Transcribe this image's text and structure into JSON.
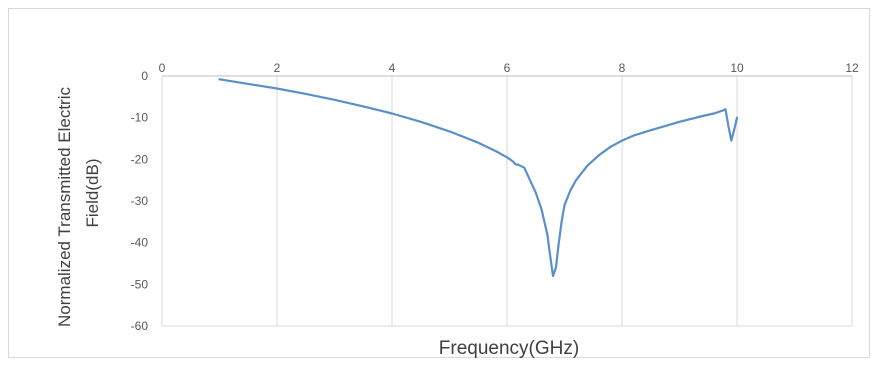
{
  "chart_data": {
    "type": "line",
    "title": "",
    "xlabel": "Frequency(GHz)",
    "ylabel_lines": [
      "Normalized Transmitted Electric",
      "Field(dB)"
    ],
    "xlim": [
      0,
      12
    ],
    "ylim": [
      -60,
      0
    ],
    "x_ticks": [
      0,
      2,
      4,
      6,
      8,
      10,
      12
    ],
    "y_ticks": [
      0,
      -10,
      -20,
      -30,
      -40,
      -50,
      -60
    ],
    "x_tick_labels": [
      "0",
      "2",
      "4",
      "6",
      "8",
      "10",
      "12"
    ],
    "y_tick_labels": [
      "0",
      "-10",
      "-20",
      "-30",
      "-40",
      "-50",
      "-60"
    ],
    "x_axis_position": "top",
    "grid": "vertical",
    "legend": "none",
    "series": [
      {
        "color": "#5b8fc9",
        "x": [
          1.0,
          1.5,
          2.0,
          2.5,
          3.0,
          3.5,
          4.0,
          4.5,
          5.0,
          5.5,
          5.8,
          6.0,
          6.1,
          6.15,
          6.2,
          6.3,
          6.4,
          6.5,
          6.6,
          6.7,
          6.75,
          6.8,
          6.85,
          6.9,
          6.95,
          7.0,
          7.1,
          7.2,
          7.4,
          7.6,
          7.8,
          8.0,
          8.2,
          8.5,
          8.8,
          9.0,
          9.2,
          9.4,
          9.6,
          9.75,
          9.8,
          9.85,
          9.9,
          9.95,
          10.0
        ],
        "y": [
          -0.8,
          -1.9,
          -3.0,
          -4.3,
          -5.7,
          -7.3,
          -9.0,
          -11.0,
          -13.3,
          -16.0,
          -18.0,
          -19.5,
          -20.5,
          -21.2,
          -21.3,
          -22.0,
          -25.0,
          -28.0,
          -32.0,
          -38.0,
          -43.0,
          -48.0,
          -46.0,
          -40.0,
          -35.0,
          -31.0,
          -27.5,
          -25.0,
          -21.5,
          -19.0,
          -17.0,
          -15.5,
          -14.3,
          -13.0,
          -11.8,
          -11.0,
          -10.3,
          -9.6,
          -9.0,
          -8.3,
          -8.0,
          -12.0,
          -15.5,
          -13.0,
          -10.0
        ]
      }
    ]
  }
}
